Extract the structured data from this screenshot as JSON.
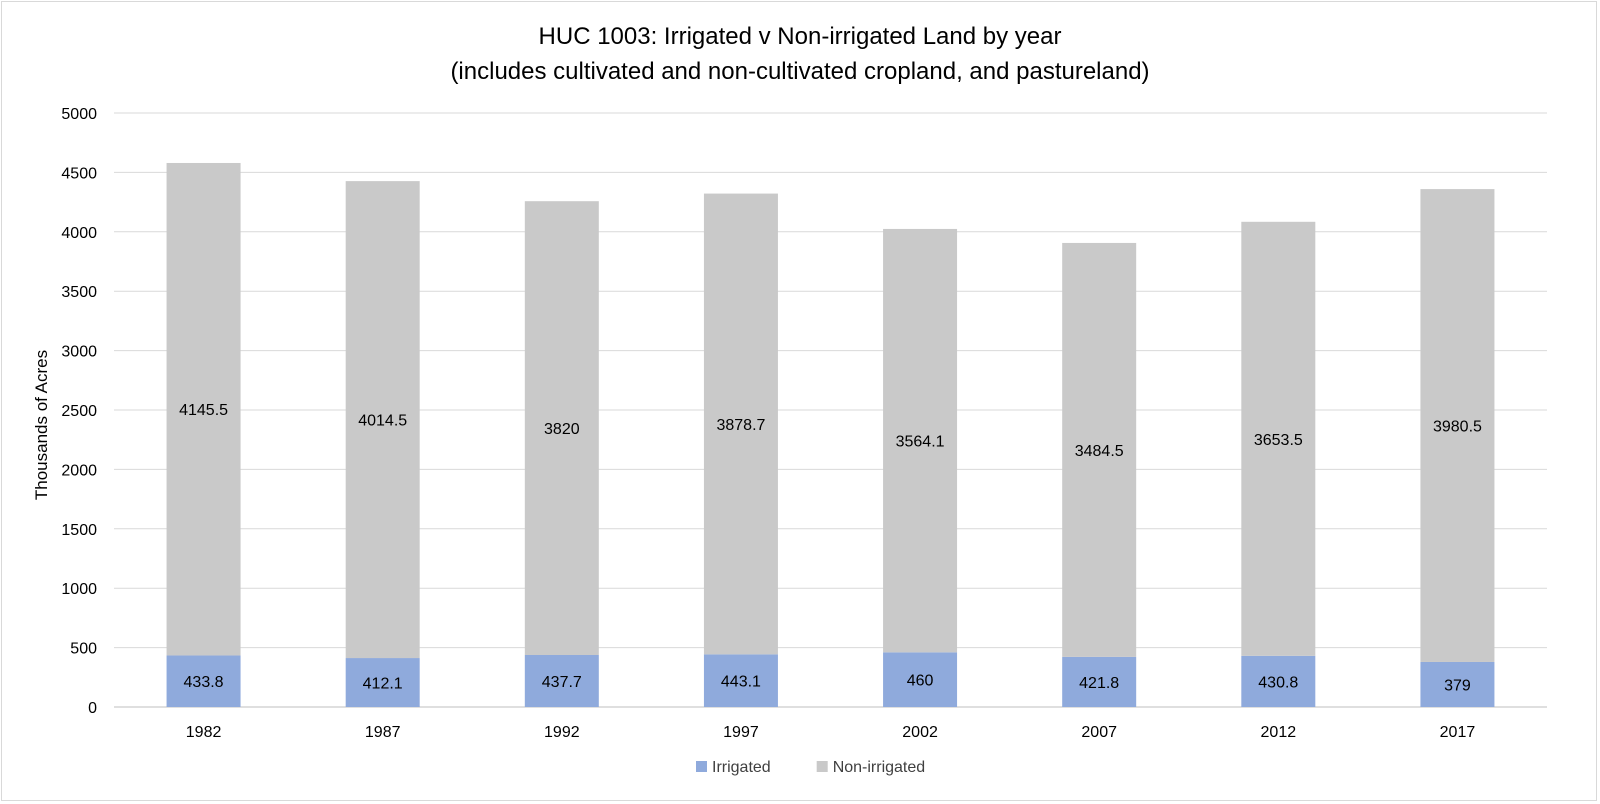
{
  "chart_data": {
    "type": "bar",
    "stacked": true,
    "title": "HUC 1003: Irrigated v Non-irrigated Land by year",
    "subtitle": "(includes cultivated and non-cultivated cropland, and pastureland)",
    "xlabel": "",
    "ylabel": "Thousands of Acres",
    "ylim": [
      0,
      5000
    ],
    "yticks": [
      0,
      500,
      1000,
      1500,
      2000,
      2500,
      3000,
      3500,
      4000,
      4500,
      5000
    ],
    "grid": true,
    "legend_position": "bottom",
    "categories": [
      "1982",
      "1987",
      "1992",
      "1997",
      "2002",
      "2007",
      "2012",
      "2017"
    ],
    "series": [
      {
        "name": "Irrigated",
        "color": "#8faadc",
        "values": [
          433.8,
          412.1,
          437.7,
          443.1,
          460,
          421.8,
          430.8,
          379
        ]
      },
      {
        "name": "Non-irrigated",
        "color": "#c9c9c9",
        "values": [
          4145.5,
          4014.5,
          3820,
          3878.7,
          3564.1,
          3484.5,
          3653.5,
          3980.5
        ]
      }
    ]
  }
}
